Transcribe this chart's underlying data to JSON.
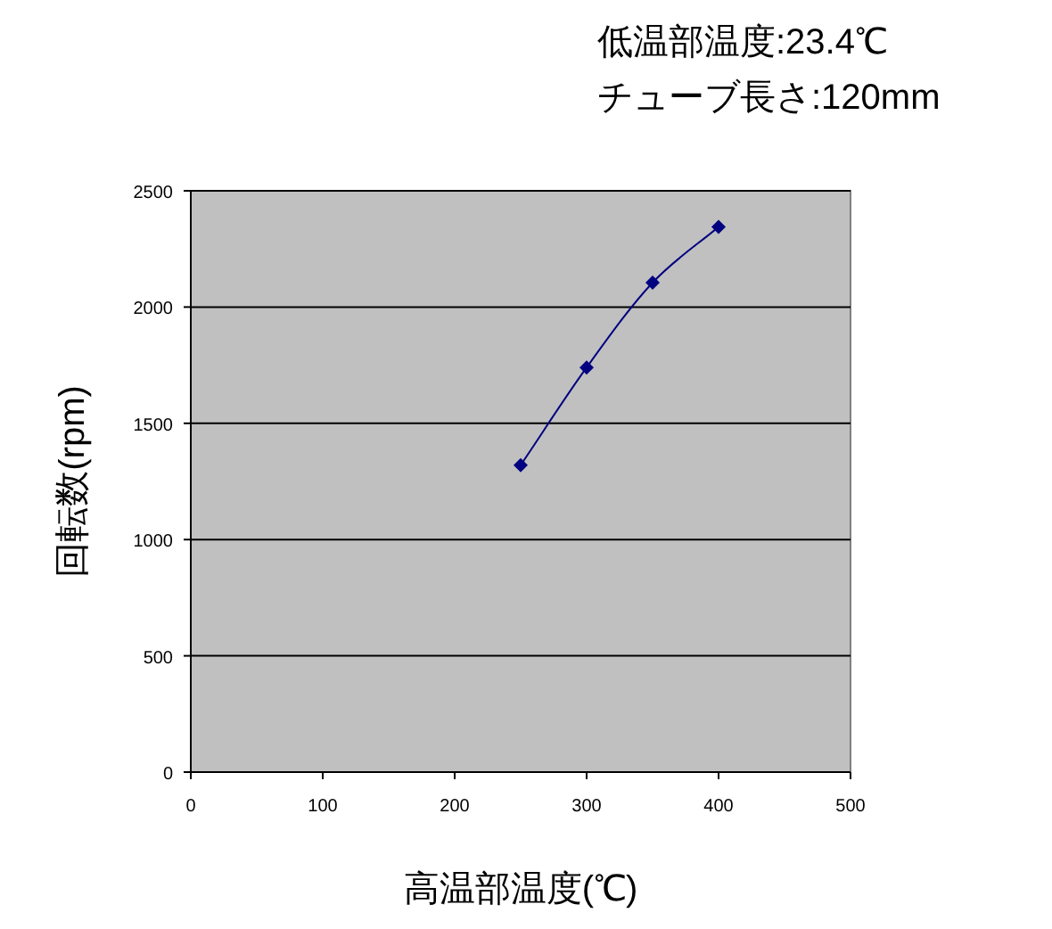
{
  "chart_data": {
    "type": "line",
    "xlabel": "高温部温度(℃)",
    "ylabel": "回転数(rpm)",
    "annotations": [
      "低温部温度:23.4℃",
      "チューブ長さ:120mm"
    ],
    "x": [
      250,
      300,
      350,
      400
    ],
    "series": [
      {
        "color": "#000080",
        "values": [
          1320,
          1740,
          2105,
          2345
        ]
      }
    ],
    "xlim": [
      0,
      500
    ],
    "xticks": [
      0,
      100,
      200,
      300,
      400,
      500
    ],
    "ylim": [
      0,
      2500
    ],
    "yticks": [
      0,
      500,
      1000,
      1500,
      2000,
      2500
    ],
    "grid": "y",
    "marker": "diamond",
    "line_style": "solid"
  }
}
